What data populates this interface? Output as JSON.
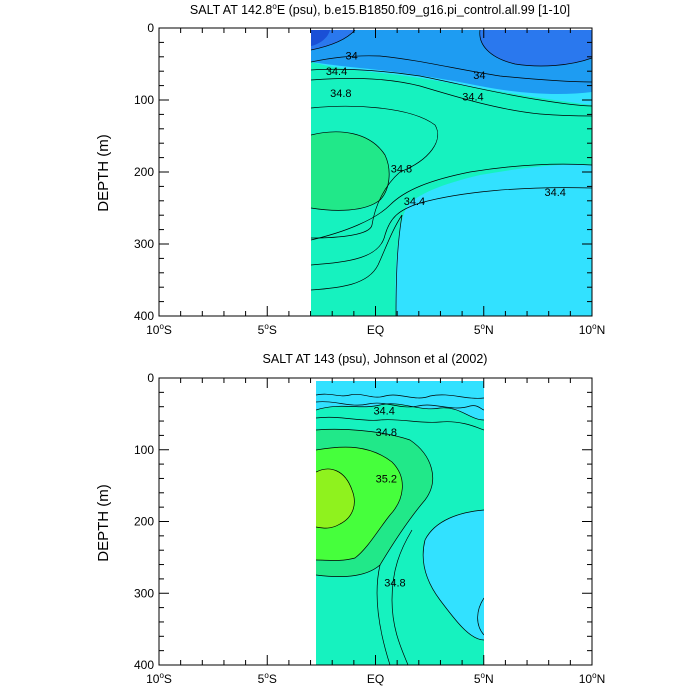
{
  "chart_data": [
    {
      "type": "contour",
      "title_pre": "SALT AT 142.8",
      "title_deg": "o",
      "title_post": "E (psu), b.e15.B1850.f09_g16.pi_control.all.99 [1-10]",
      "xlabel": "",
      "ylabel": "DEPTH (m)",
      "xlim": [
        -10,
        10
      ],
      "ylim": [
        400,
        0
      ],
      "x_ticks": [
        {
          "value": -10,
          "label": "10",
          "deg": "o",
          "hemi": "S"
        },
        {
          "value": -5,
          "label": "5",
          "deg": "o",
          "hemi": "S"
        },
        {
          "value": 0,
          "label": "EQ",
          "deg": "",
          "hemi": ""
        },
        {
          "value": 5,
          "label": "5",
          "deg": "o",
          "hemi": "N"
        },
        {
          "value": 10,
          "label": "10",
          "deg": "o",
          "hemi": "N"
        }
      ],
      "y_ticks": [
        0,
        100,
        200,
        300,
        400
      ],
      "contour_interval": 0.2,
      "data_extent": {
        "lat": [
          -3.1,
          10
        ],
        "depth": [
          0,
          400
        ]
      },
      "fill_colors": {
        "lt_33.4": "#1a4fd6",
        "33.4_33.8": "#2a78ee",
        "33.8_34.2": "#1e9cf2",
        "34.2_34.6": "#32e1ff",
        "34.6_35.0": "#16f2bf",
        "35.0_35.4": "#21e889",
        "35.4_35.8": "#46ff3c"
      },
      "contour_labels": [
        {
          "text": "34",
          "lat": -1.1,
          "depth": 38
        },
        {
          "text": "34.4",
          "lat": -1.8,
          "depth": 60
        },
        {
          "text": "34",
          "lat": 4.8,
          "depth": 65
        },
        {
          "text": "34.8",
          "lat": -1.6,
          "depth": 90
        },
        {
          "text": "34.4",
          "lat": 4.5,
          "depth": 95
        },
        {
          "text": "34.8",
          "lat": 1.2,
          "depth": 195
        },
        {
          "text": "34.4",
          "lat": 1.8,
          "depth": 240
        },
        {
          "text": "34.4",
          "lat": 8.3,
          "depth": 228
        }
      ]
    },
    {
      "type": "contour",
      "title_pre": "SALT AT 143 (psu), Johnson et al (2002)",
      "title_deg": "",
      "title_post": "",
      "xlabel": "",
      "ylabel": "DEPTH (m)",
      "xlim": [
        -10,
        10
      ],
      "ylim": [
        400,
        0
      ],
      "x_ticks": [
        {
          "value": -10,
          "label": "10",
          "deg": "o",
          "hemi": "S"
        },
        {
          "value": -5,
          "label": "5",
          "deg": "o",
          "hemi": "S"
        },
        {
          "value": 0,
          "label": "EQ",
          "deg": "",
          "hemi": ""
        },
        {
          "value": 5,
          "label": "5",
          "deg": "o",
          "hemi": "N"
        },
        {
          "value": 10,
          "label": "10",
          "deg": "o",
          "hemi": "N"
        }
      ],
      "y_ticks": [
        0,
        100,
        200,
        300,
        400
      ],
      "contour_interval": 0.2,
      "data_extent": {
        "lat": [
          -2.8,
          5
        ],
        "depth": [
          5,
          400
        ]
      },
      "fill_colors": {
        "34.0_34.4": "#32e1ff",
        "34.4_34.8": "#16f2bf",
        "34.8_35.2": "#21e889",
        "35.2_35.6": "#46ff3c",
        "gt_35.6": "#8ff21e"
      },
      "contour_labels": [
        {
          "text": "34.4",
          "lat": 0.4,
          "depth": 45
        },
        {
          "text": "34.8",
          "lat": 0.5,
          "depth": 75
        },
        {
          "text": "35.2",
          "lat": 0.5,
          "depth": 140
        },
        {
          "text": "34.8",
          "lat": 0.9,
          "depth": 285
        }
      ]
    }
  ]
}
